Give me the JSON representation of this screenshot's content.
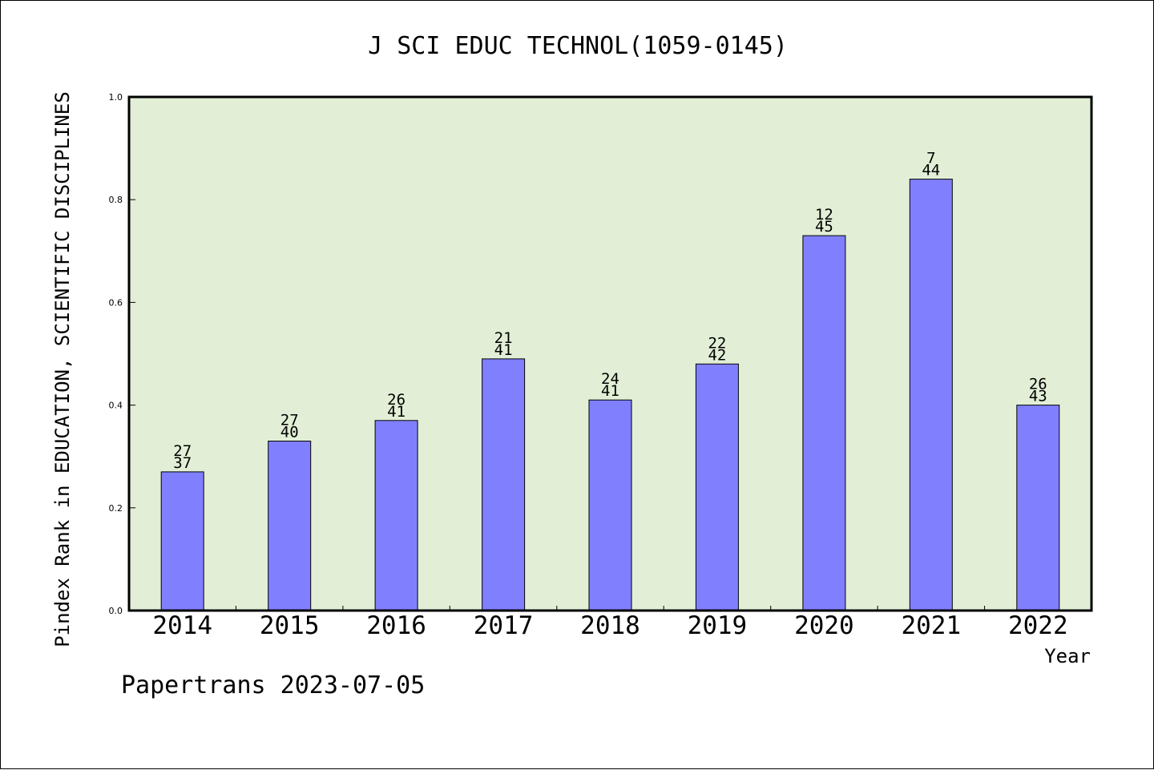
{
  "chart_data": {
    "type": "bar",
    "title": "J SCI EDUC TECHNOL(1059-0145)",
    "xlabel": "Year",
    "ylabel": "Pindex Rank in EDUCATION, SCIENTIFIC DISCIPLINES",
    "ylim": [
      0,
      1.0
    ],
    "yticks": [
      "0.0",
      "0.2",
      "0.4",
      "0.6",
      "0.8",
      "1.0"
    ],
    "grid": false,
    "categories": [
      "2014",
      "2015",
      "2016",
      "2017",
      "2018",
      "2019",
      "2020",
      "2021",
      "2022"
    ],
    "values": [
      0.27,
      0.33,
      0.37,
      0.49,
      0.41,
      0.48,
      0.73,
      0.84,
      0.4
    ],
    "rank_labels": [
      "27",
      "27",
      "26",
      "21",
      "24",
      "22",
      "12",
      "7",
      "26"
    ],
    "total_labels": [
      "37",
      "40",
      "41",
      "41",
      "41",
      "42",
      "45",
      "44",
      "43"
    ],
    "footer": "Papertrans 2023-07-05",
    "colors": {
      "bar": "#8080ff",
      "plot_background": "#e2efd6",
      "axis": "#000000",
      "background": "#ffffff"
    }
  }
}
